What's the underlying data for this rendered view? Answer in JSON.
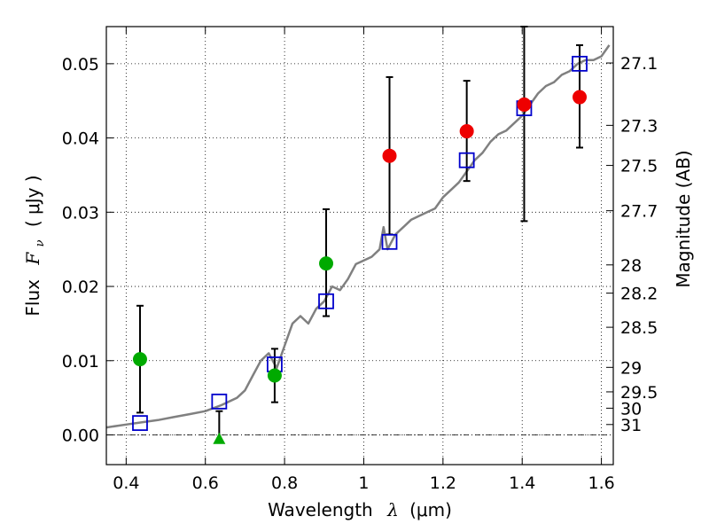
{
  "chart_data": {
    "type": "scatter",
    "title": "",
    "xlabel_text": "Wavelength",
    "xlabel_symbol": "λ",
    "xlabel_unit": "(μm)",
    "ylabel_text": "Flux",
    "ylabel_symbol": "F",
    "ylabel_subscript": "ν",
    "ylabel_unit": "( μJy )",
    "y2label": "Magnitude (AB)",
    "xlim": [
      0.35,
      1.63
    ],
    "ylim": [
      -0.004,
      0.055
    ],
    "grid": true,
    "x_ticks": [
      0.4,
      0.6,
      0.8,
      1.0,
      1.2,
      1.4,
      1.6
    ],
    "x_tick_labels": [
      "0.4",
      "0.6",
      "0.8",
      "1",
      "1.2",
      "1.4",
      "1.6"
    ],
    "y_ticks": [
      0.0,
      0.01,
      0.02,
      0.03,
      0.04,
      0.05
    ],
    "y_tick_labels": [
      "0.00",
      "0.01",
      "0.02",
      "0.03",
      "0.04",
      "0.05"
    ],
    "y2_ticks": [
      {
        "label": "27.1",
        "flux": 0.0501
      },
      {
        "label": "27.3",
        "flux": 0.0417
      },
      {
        "label": "27.5",
        "flux": 0.0363
      },
      {
        "label": "27.7",
        "flux": 0.0302
      },
      {
        "label": "28",
        "flux": 0.0229
      },
      {
        "label": "28.2",
        "flux": 0.0191
      },
      {
        "label": "28.5",
        "flux": 0.0145
      },
      {
        "label": "29",
        "flux": 0.0091
      },
      {
        "label": "29.5",
        "flux": 0.0058
      },
      {
        "label": "30",
        "flux": 0.0036
      },
      {
        "label": "31",
        "flux": 0.0014
      }
    ],
    "sed_model": {
      "color": "#808080",
      "x": [
        0.35,
        0.4,
        0.44,
        0.48,
        0.52,
        0.56,
        0.6,
        0.64,
        0.68,
        0.7,
        0.72,
        0.74,
        0.76,
        0.78,
        0.8,
        0.82,
        0.84,
        0.86,
        0.88,
        0.9,
        0.92,
        0.94,
        0.96,
        0.98,
        1.0,
        1.02,
        1.04,
        1.05,
        1.06,
        1.08,
        1.1,
        1.12,
        1.14,
        1.16,
        1.18,
        1.2,
        1.22,
        1.24,
        1.26,
        1.28,
        1.3,
        1.32,
        1.34,
        1.36,
        1.38,
        1.4,
        1.42,
        1.44,
        1.46,
        1.48,
        1.5,
        1.52,
        1.54,
        1.56,
        1.58,
        1.6,
        1.62
      ],
      "y": [
        0.001,
        0.0014,
        0.0017,
        0.002,
        0.0024,
        0.0028,
        0.0032,
        0.004,
        0.005,
        0.006,
        0.008,
        0.01,
        0.011,
        0.009,
        0.012,
        0.015,
        0.016,
        0.015,
        0.017,
        0.018,
        0.02,
        0.0195,
        0.021,
        0.023,
        0.0235,
        0.024,
        0.025,
        0.028,
        0.025,
        0.027,
        0.028,
        0.029,
        0.0295,
        0.03,
        0.0305,
        0.032,
        0.033,
        0.034,
        0.0355,
        0.037,
        0.038,
        0.0395,
        0.0405,
        0.041,
        0.042,
        0.043,
        0.0445,
        0.046,
        0.047,
        0.0475,
        0.0485,
        0.049,
        0.05,
        0.0505,
        0.0505,
        0.051,
        0.0525
      ]
    },
    "model_photometry": {
      "marker": "open-square",
      "color": "#0000cc",
      "x": [
        0.435,
        0.635,
        0.775,
        0.905,
        1.065,
        1.26,
        1.405,
        1.545
      ],
      "y": [
        0.0016,
        0.0045,
        0.0095,
        0.018,
        0.026,
        0.037,
        0.044,
        0.05
      ]
    },
    "observed_green": {
      "marker": "circle",
      "color": "#00aa00",
      "x": [
        0.435,
        0.775,
        0.905
      ],
      "y": [
        0.0102,
        0.008,
        0.0231
      ],
      "yerr_low": [
        0.0072,
        0.0036,
        0.0071
      ],
      "yerr_high": [
        0.0072,
        0.0036,
        0.0073
      ]
    },
    "observed_red": {
      "marker": "circle",
      "color": "#ee0000",
      "x": [
        1.065,
        1.26,
        1.405,
        1.545
      ],
      "y": [
        0.0376,
        0.0409,
        0.0445,
        0.0455
      ],
      "yerr_low": [
        0.0106,
        0.0067,
        0.0157,
        0.0068
      ],
      "yerr_high": [
        0.0106,
        0.0068,
        0.0105,
        0.007
      ]
    },
    "upper_limit": {
      "marker": "triangle-up",
      "color": "#00aa00",
      "x": 0.635,
      "y": -0.0005,
      "err_top": 0.0032
    }
  }
}
